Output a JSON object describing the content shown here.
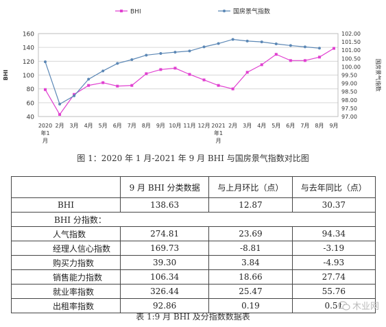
{
  "chart_data": {
    "type": "line",
    "categories": [
      "2020年1月",
      "2月",
      "3月",
      "4月",
      "5月",
      "6月",
      "7月",
      "8月",
      "9月",
      "10月",
      "11月",
      "12月",
      "2021年1月",
      "2月",
      "3月",
      "4月",
      "5月",
      "6月",
      "7月",
      "8月",
      "9月"
    ],
    "tick_labels": [
      [
        "2020",
        "年1",
        "月"
      ],
      [
        "2月"
      ],
      [
        "3月"
      ],
      [
        "4月"
      ],
      [
        "5月"
      ],
      [
        "6月"
      ],
      [
        "7月"
      ],
      [
        "8月"
      ],
      [
        "9月"
      ],
      [
        "10月"
      ],
      [
        "11月"
      ],
      [
        "12月"
      ],
      [
        "2021",
        "年1",
        "月"
      ],
      [
        "2月"
      ],
      [
        "3月"
      ],
      [
        "4月"
      ],
      [
        "5月"
      ],
      [
        "6月"
      ],
      [
        "7月"
      ],
      [
        "8月"
      ],
      [
        "9月"
      ]
    ],
    "series": [
      {
        "name": "BHI",
        "axis": "left",
        "color": "#e040d0",
        "marker": "square",
        "values": [
          79,
          43,
          72,
          85,
          89,
          84,
          85,
          102,
          108,
          110,
          101,
          93,
          85,
          80,
          104,
          115,
          130,
          121,
          121,
          126,
          138.63
        ]
      },
      {
        "name": "国房景气指数",
        "axis": "right",
        "color": "#5b87b5",
        "marker": "circle",
        "values": [
          100.3,
          97.75,
          98.25,
          99.25,
          99.75,
          100.2,
          100.43,
          100.7,
          100.8,
          100.88,
          100.95,
          101.2,
          101.4,
          101.65,
          101.55,
          101.5,
          101.38,
          101.28,
          101.2,
          101.12,
          null
        ]
      }
    ],
    "y_left": {
      "min": 40,
      "max": 160,
      "step": 20,
      "label": "BHI"
    },
    "y_right": {
      "min": 97.0,
      "max": 102.0,
      "step": 0.5,
      "label": "国房景气指数",
      "tick_labels": [
        "97.00",
        "97.50",
        "98.00",
        "98.50",
        "99.00",
        "99.50",
        "100.00",
        "100.50",
        "101.00",
        "101.50",
        "102.00"
      ]
    },
    "grid": true,
    "legend_position": "top"
  },
  "figure_caption": "图 1：2020 年 1 月-2021 年 9 月 BHI 与国房景气指数对比图",
  "table": {
    "headers": [
      "",
      "9 月 BHI 分类数据",
      "与上月环比（点）",
      "与去年同比（点）"
    ],
    "bhi_row": [
      "BHI",
      "138.63",
      "12.87",
      "30.37"
    ],
    "section_label": "BHI 分指数：",
    "rows": [
      [
        "人气指数",
        "274.81",
        "23.69",
        "94.34"
      ],
      [
        "经理人信心指数",
        "169.73",
        "-8.81",
        "-3.19"
      ],
      [
        "购买力指数",
        "39.30",
        "3.84",
        "-4.93"
      ],
      [
        "销售能力指数",
        "106.34",
        "18.66",
        "27.74"
      ],
      [
        "就业率指数",
        "326.44",
        "25.47",
        "55.76"
      ],
      [
        "出租率指数",
        "92.86",
        "0.19",
        "0.51"
      ]
    ]
  },
  "table_caption": "表 1:9 月 BHI 及分指数数据表",
  "watermark": {
    "text": "木业网",
    "icon": "wechat-icon",
    "color": "#bbbbbb"
  }
}
